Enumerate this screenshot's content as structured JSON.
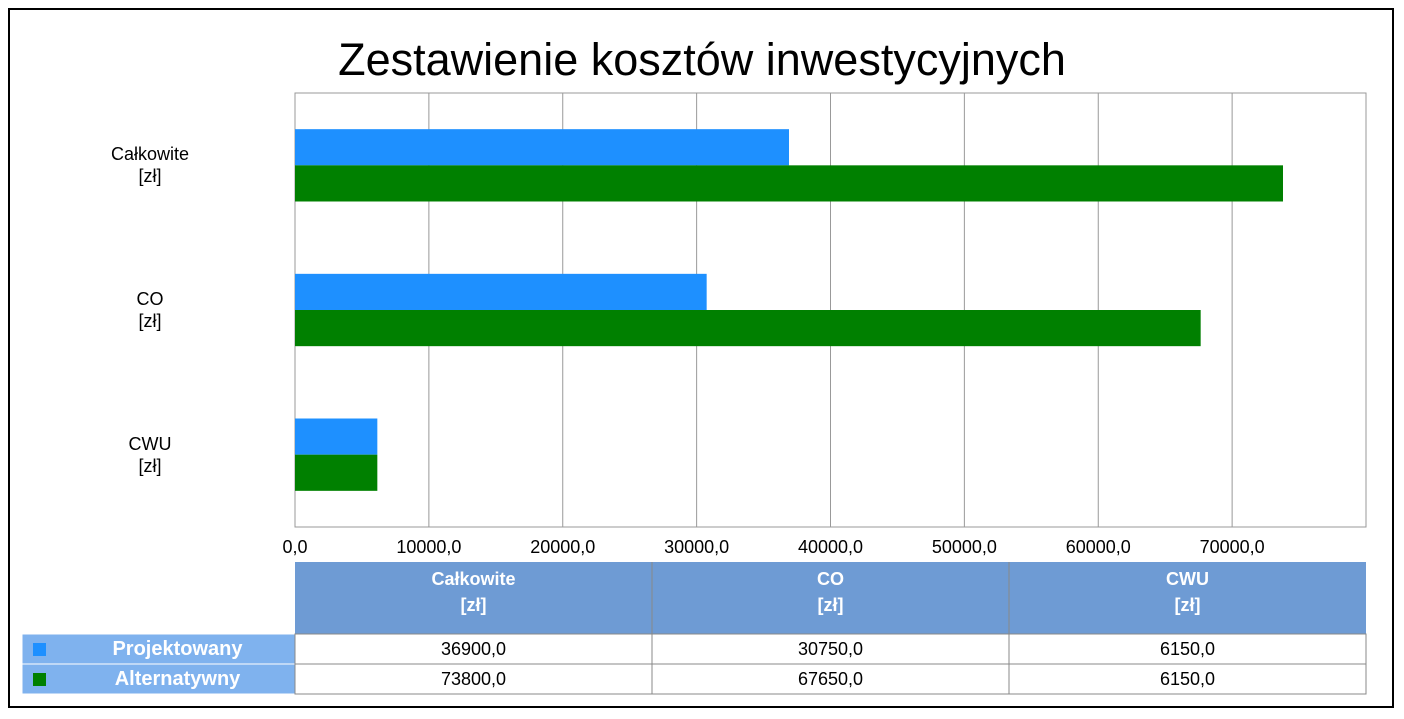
{
  "chart_data": {
    "type": "bar",
    "orientation": "horizontal",
    "title": "Zestawienie kosztów inwestycyjnych",
    "categories": [
      "Całkowite\n[zł]",
      "CO\n[zł]",
      "CWU\n[zł]"
    ],
    "series": [
      {
        "name": "Projektowany",
        "color": "#1e90ff",
        "values": [
          36900,
          30750,
          6150
        ],
        "value_labels": [
          "36900,0",
          "30750,0",
          "6150,0"
        ]
      },
      {
        "name": "Alternatywny",
        "color": "#008000",
        "values": [
          73800,
          67650,
          6150
        ],
        "value_labels": [
          "73800,0",
          "67650,0",
          "6150,0"
        ]
      }
    ],
    "xlim": [
      0,
      80000
    ],
    "xticks": [
      {
        "value": 0,
        "label": "0,0"
      },
      {
        "value": 10000,
        "label": "10000,0"
      },
      {
        "value": 20000,
        "label": "20000,0"
      },
      {
        "value": 30000,
        "label": "30000,0"
      },
      {
        "value": 40000,
        "label": "40000,0"
      },
      {
        "value": 50000,
        "label": "50000,0"
      },
      {
        "value": 60000,
        "label": "60000,0"
      },
      {
        "value": 70000,
        "label": "70000,0"
      }
    ],
    "grid": true,
    "data_table": true
  }
}
